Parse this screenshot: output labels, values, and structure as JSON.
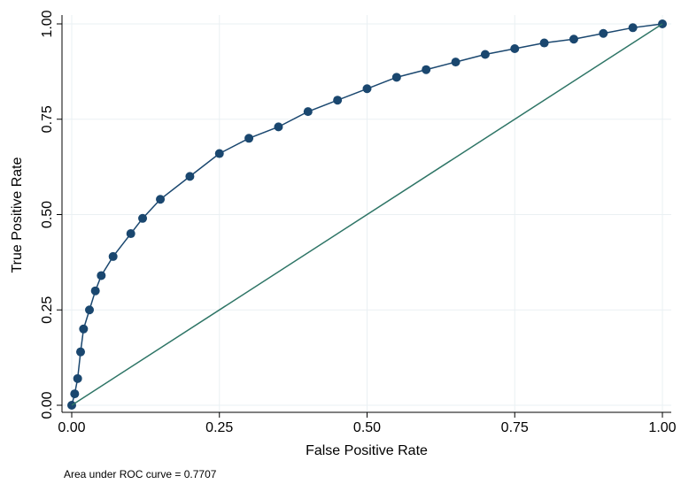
{
  "chart_data": {
    "type": "line",
    "xlabel": "False Positive Rate",
    "ylabel": "True Positive Rate",
    "note": "Area under ROC curve = 0.7707",
    "xlim": [
      0,
      1
    ],
    "ylim": [
      0,
      1
    ],
    "xticks": [
      {
        "value": 0,
        "label": "0.00"
      },
      {
        "value": 0.25,
        "label": "0.25"
      },
      {
        "value": 0.5,
        "label": "0.50"
      },
      {
        "value": 0.75,
        "label": "0.75"
      },
      {
        "value": 1,
        "label": "1.00"
      }
    ],
    "yticks": [
      {
        "value": 0,
        "label": "0.00"
      },
      {
        "value": 0.25,
        "label": "0.25"
      },
      {
        "value": 0.5,
        "label": "0.50"
      },
      {
        "value": 0.75,
        "label": "0.75"
      },
      {
        "value": 1,
        "label": "1.00"
      }
    ],
    "grid": true,
    "series": [
      {
        "color": "#1a476f",
        "markers": true,
        "x": [
          0,
          0.005,
          0.01,
          0.015,
          0.02,
          0.03,
          0.04,
          0.05,
          0.07,
          0.1,
          0.12,
          0.15,
          0.2,
          0.25,
          0.3,
          0.35,
          0.4,
          0.45,
          0.5,
          0.55,
          0.6,
          0.65,
          0.7,
          0.75,
          0.8,
          0.85,
          0.9,
          0.95,
          1
        ],
        "values": [
          0,
          0.03,
          0.07,
          0.14,
          0.2,
          0.25,
          0.3,
          0.34,
          0.39,
          0.45,
          0.49,
          0.54,
          0.6,
          0.66,
          0.7,
          0.73,
          0.77,
          0.8,
          0.83,
          0.86,
          0.88,
          0.9,
          0.92,
          0.935,
          0.95,
          0.96,
          0.975,
          0.99,
          1
        ]
      },
      {
        "color": "#2e7566",
        "markers": false,
        "x": [
          0,
          1
        ],
        "values": [
          0,
          1
        ]
      }
    ]
  }
}
